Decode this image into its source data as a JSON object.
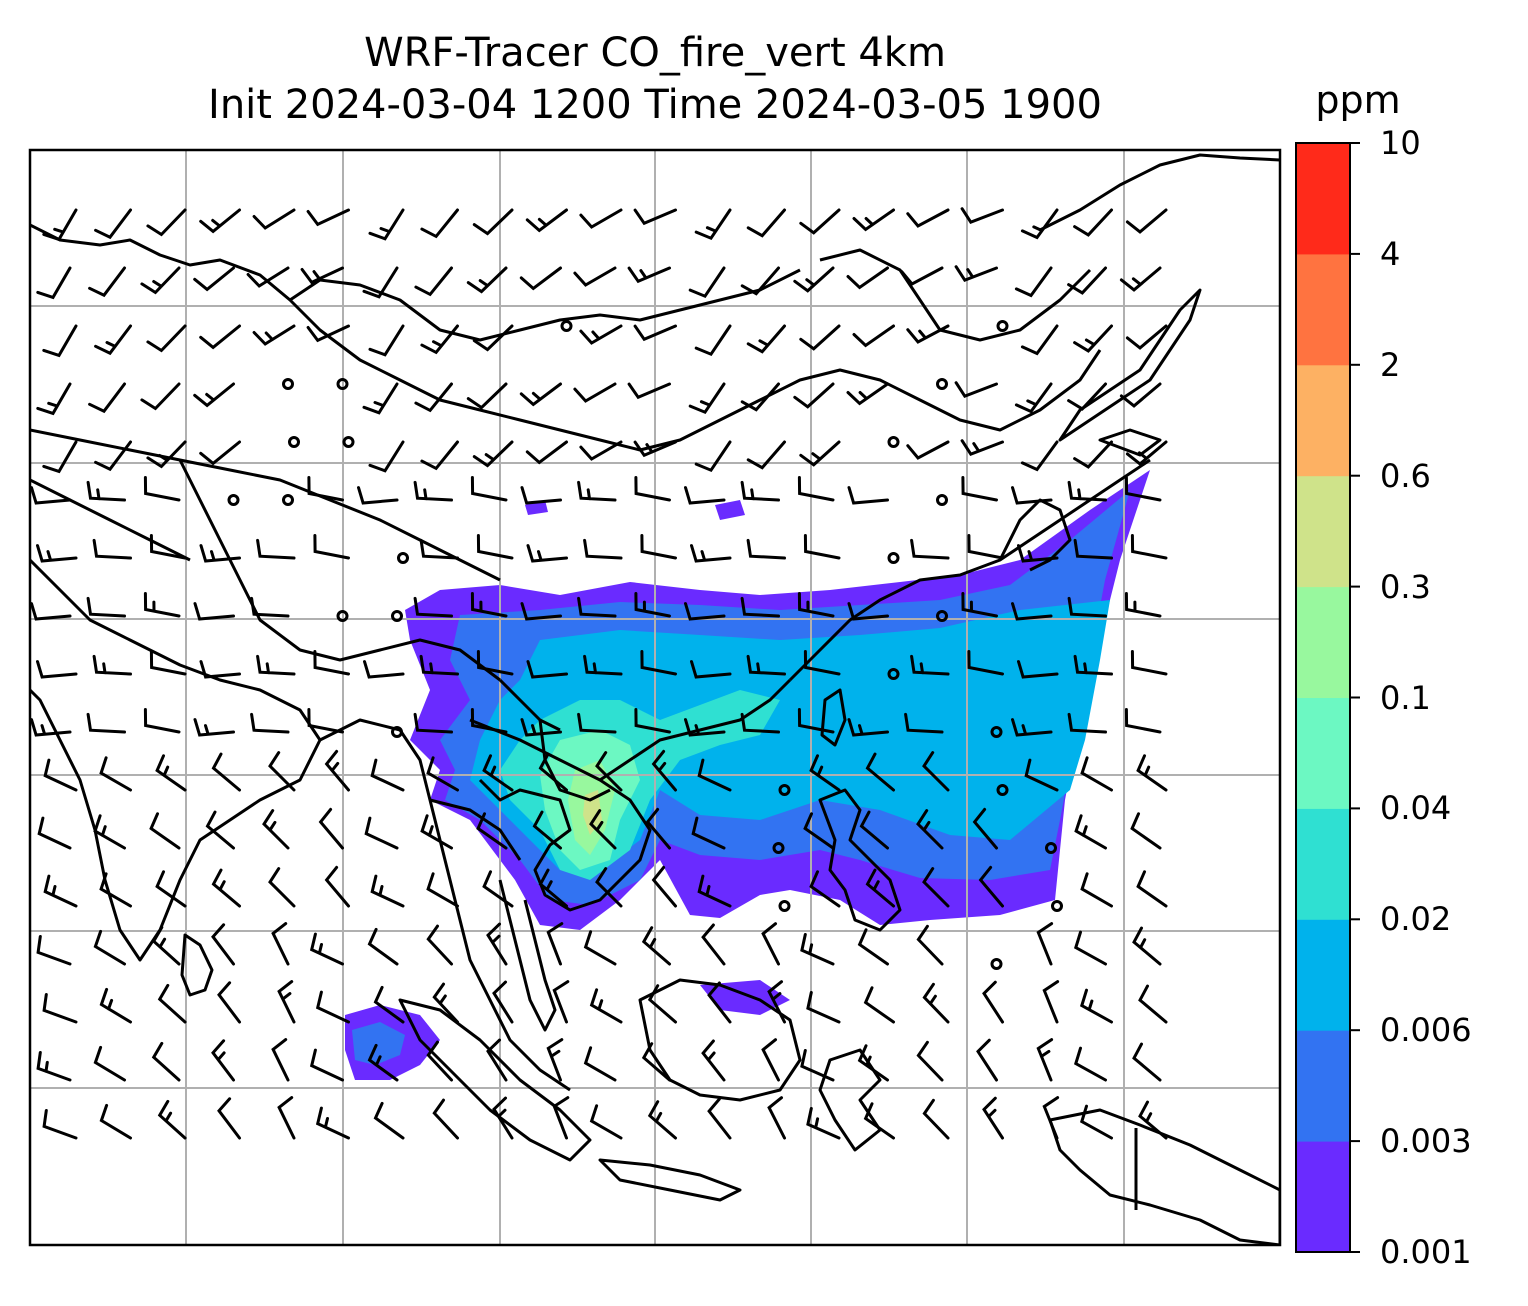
{
  "title": {
    "line1": "WRF-Tracer CO_fire_vert 4km",
    "line2": "Init 2024-03-04 1200 Time 2024-03-05 1900"
  },
  "chart_data": {
    "type": "heatmap",
    "title": "WRF-Tracer CO_fire_vert 4km",
    "subtitle": "Init 2024-03-04 1200 Time 2024-03-05 1900",
    "variable": "CO_fire_vert",
    "resolution": "4km",
    "init_time": "2024-03-04 1200",
    "valid_time": "2024-03-05 1900",
    "grid": true,
    "overlays": [
      "coastlines",
      "country-borders",
      "wind-barbs",
      "gridlines"
    ],
    "colorbar": {
      "label": "ppm",
      "placement": "right",
      "levels": [
        "0.001",
        "0.003",
        "0.006",
        "0.02",
        "0.04",
        "0.1",
        "0.3",
        "0.6",
        "2",
        "4",
        "10"
      ],
      "colors": [
        "#6a2bff",
        "#3273f2",
        "#00b2ec",
        "#2fe0d2",
        "#6cf8c2",
        "#98f89e",
        "#cfe38a",
        "#fdb163",
        "#ff7340",
        "#ff2a1a"
      ]
    }
  }
}
